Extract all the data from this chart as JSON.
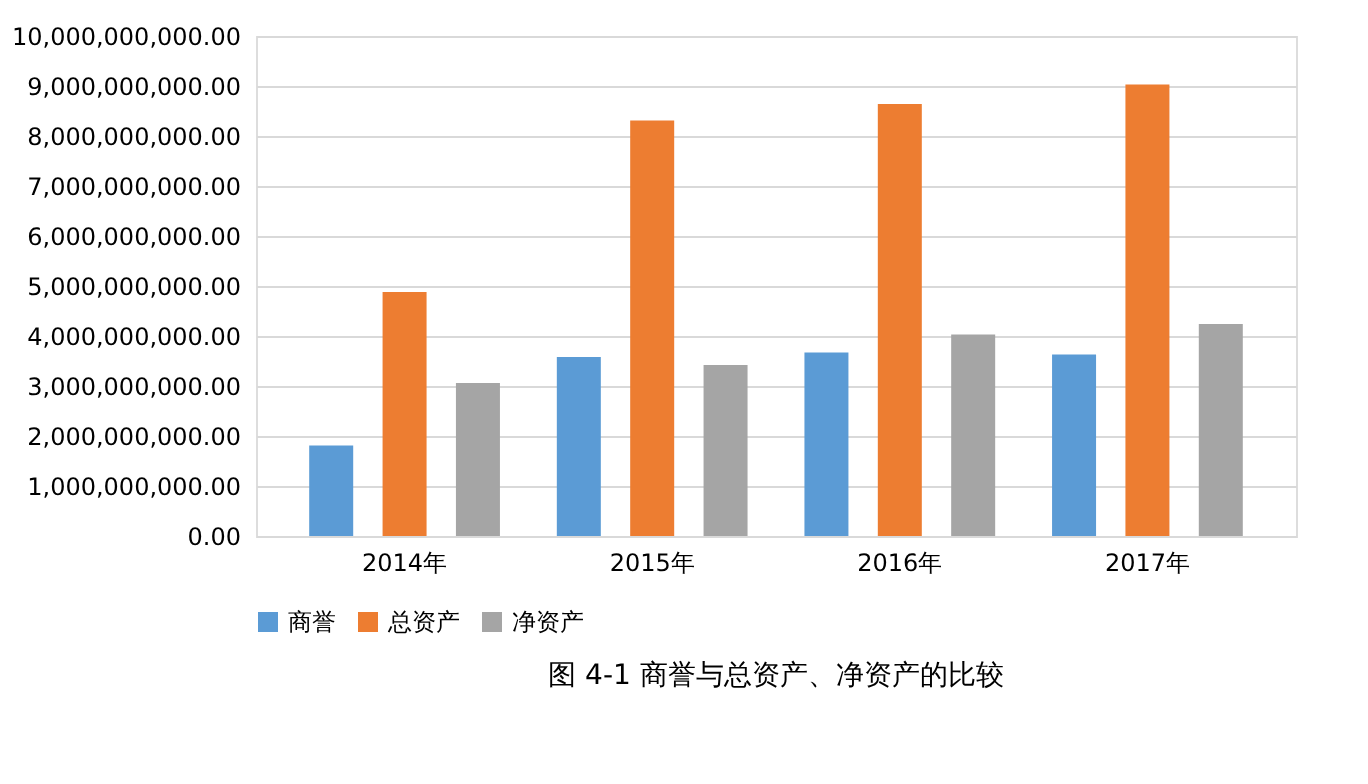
{
  "chart_data": {
    "type": "bar",
    "categories": [
      "2014年",
      "2015年",
      "2016年",
      "2017年"
    ],
    "series": [
      {
        "name": "商誉",
        "color": "#5b9bd5",
        "values": [
          1810000000,
          3580000000,
          3670000000,
          3630000000
        ]
      },
      {
        "name": "总资产",
        "color": "#ed7d31",
        "values": [
          4880000000,
          8310000000,
          8640000000,
          9030000000
        ]
      },
      {
        "name": "净资产",
        "color": "#a5a5a5",
        "values": [
          3060000000,
          3420000000,
          4030000000,
          4240000000
        ]
      }
    ],
    "ylim": [
      0,
      10000000000
    ],
    "yticks": [
      {
        "value": 0,
        "label": "0.00"
      },
      {
        "value": 1000000000,
        "label": "1,000,000,000.00"
      },
      {
        "value": 2000000000,
        "label": "2,000,000,000.00"
      },
      {
        "value": 3000000000,
        "label": "3,000,000,000.00"
      },
      {
        "value": 4000000000,
        "label": "4,000,000,000.00"
      },
      {
        "value": 5000000000,
        "label": "5,000,000,000.00"
      },
      {
        "value": 6000000000,
        "label": "6,000,000,000.00"
      },
      {
        "value": 7000000000,
        "label": "7,000,000,000.00"
      },
      {
        "value": 8000000000,
        "label": "8,000,000,000.00"
      },
      {
        "value": 9000000000,
        "label": "9,000,000,000.00"
      },
      {
        "value": 10000000000,
        "label": "10,000,000,000.00"
      }
    ],
    "grid": "y",
    "legend": "bottom",
    "annotations": [
      "图 4-1 商誉与总资产、净资产的比较"
    ]
  }
}
